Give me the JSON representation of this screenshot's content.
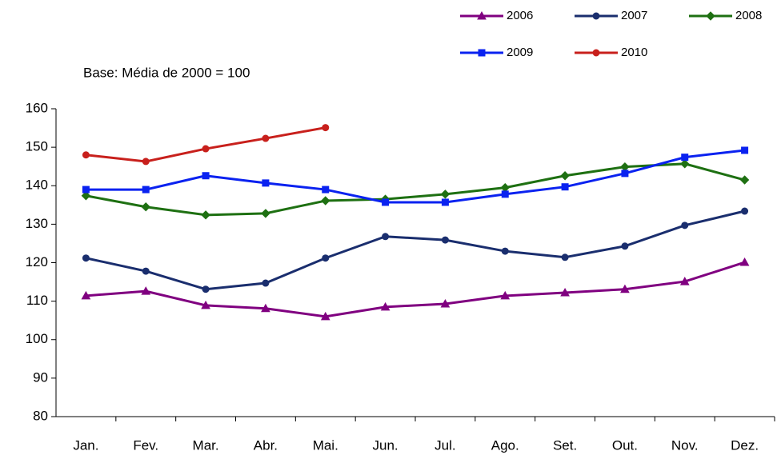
{
  "chart_data": {
    "type": "line",
    "subtitle": "Base: Média de 2000 = 100",
    "categories": [
      "Jan.",
      "Fev.",
      "Mar.",
      "Abr.",
      "Mai.",
      "Jun.",
      "Jul.",
      "Ago.",
      "Set.",
      "Out.",
      "Nov.",
      "Dez."
    ],
    "series": [
      {
        "name": "2006",
        "color": "#800080",
        "marker": "triangle",
        "values": [
          111.4,
          112.6,
          108.9,
          108.1,
          106.0,
          108.5,
          109.3,
          111.4,
          112.2,
          113.1,
          115.1,
          120.1
        ]
      },
      {
        "name": "2007",
        "color": "#1a2e6e",
        "marker": "circle",
        "values": [
          121.2,
          117.8,
          113.1,
          114.7,
          121.2,
          126.8,
          125.9,
          123.0,
          121.4,
          124.3,
          129.7,
          133.4
        ]
      },
      {
        "name": "2008",
        "color": "#1e7012",
        "marker": "diamond",
        "values": [
          137.4,
          134.5,
          132.4,
          132.8,
          136.1,
          136.5,
          137.8,
          139.5,
          142.6,
          144.9,
          145.7,
          141.5
        ]
      },
      {
        "name": "2009",
        "color": "#0a22f0",
        "marker": "square",
        "values": [
          139.0,
          139.0,
          142.6,
          140.7,
          139.0,
          135.7,
          135.7,
          137.8,
          139.7,
          143.2,
          147.4,
          149.2
        ]
      },
      {
        "name": "2010",
        "color": "#c8201c",
        "marker": "circle",
        "values": [
          148.0,
          146.3,
          149.6,
          152.3,
          155.1,
          null,
          null,
          null,
          null,
          null,
          null,
          null
        ]
      }
    ],
    "ylim": [
      80,
      160
    ],
    "yticks": [
      80,
      90,
      100,
      110,
      120,
      130,
      140,
      150,
      160
    ],
    "grid": false
  }
}
